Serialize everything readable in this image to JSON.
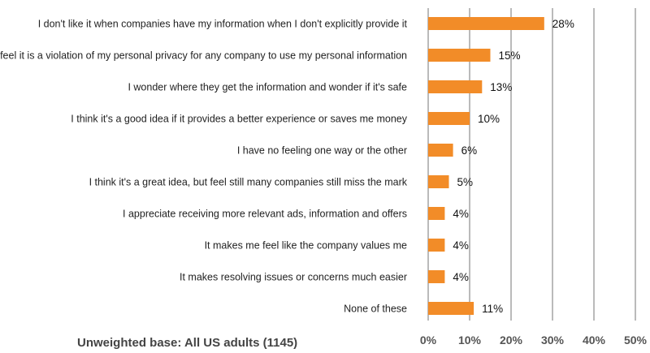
{
  "chart_data": {
    "type": "bar",
    "orientation": "horizontal",
    "categories": [
      "I don't like it when companies have my information when I don't explicitly provide it",
      "I feel it is a violation of my personal privacy for any company to use my personal information",
      "I wonder where they get the information and wonder if it's safe",
      "I think it's a good idea if it provides a better experience or saves me money",
      "I have no feeling one way or the other",
      "I think it's a great idea, but feel still many companies still miss the mark",
      "I appreciate receiving more relevant ads, information and offers",
      "It makes me feel like the company values me",
      "It makes resolving issues or concerns much easier",
      "None of these"
    ],
    "values": [
      28,
      15,
      13,
      10,
      6,
      5,
      4,
      4,
      4,
      11
    ],
    "value_labels": [
      "28%",
      "15%",
      "13%",
      "10%",
      "6%",
      "5%",
      "4%",
      "4%",
      "4%",
      "11%"
    ],
    "xlim": [
      0,
      50
    ],
    "xticks": [
      0,
      10,
      20,
      30,
      40,
      50
    ],
    "xtick_labels": [
      "0%",
      "10%",
      "20%",
      "30%",
      "40%",
      "50%"
    ],
    "grid": true,
    "bar_color": "#f28c28",
    "title": "",
    "xlabel": "",
    "ylabel": "",
    "footnote": "Unweighted base: All US adults (1145)"
  }
}
